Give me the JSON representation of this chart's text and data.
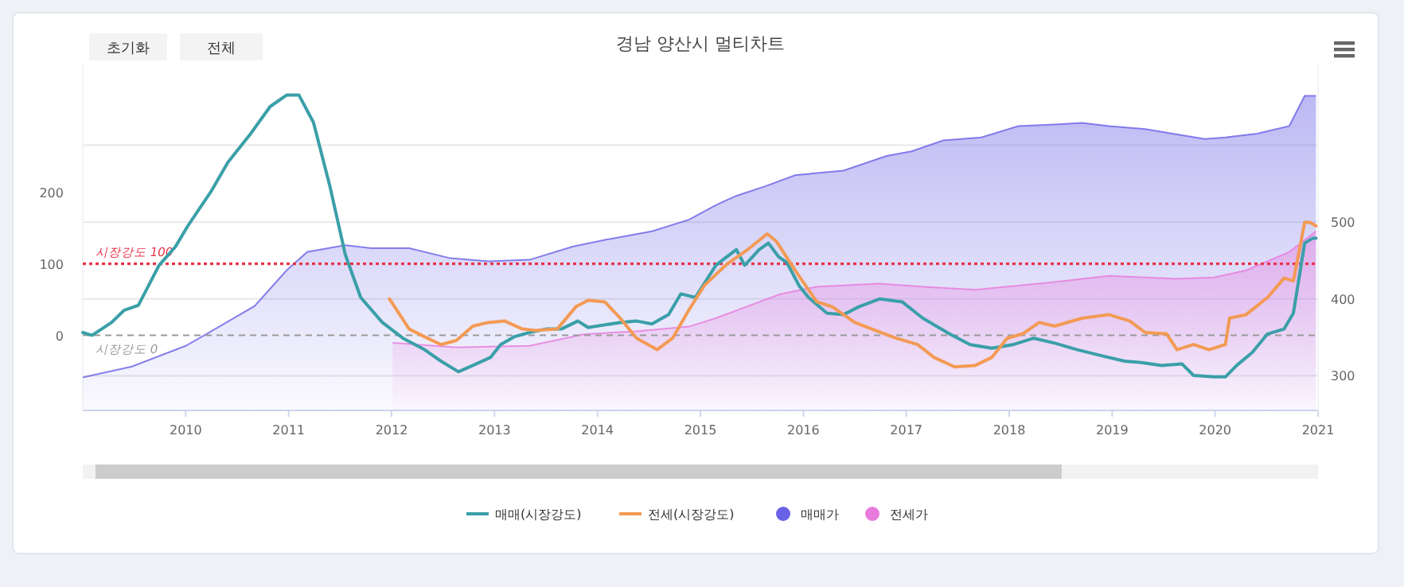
{
  "chart_data": {
    "type": "line",
    "title": "경남 양산시 멀티차트",
    "annotations": [
      "초기화",
      "전체"
    ],
    "xlim": [
      2009,
      2021
    ],
    "xticks": [
      2010,
      2011,
      2012,
      2013,
      2014,
      2015,
      2016,
      2017,
      2018,
      2019,
      2020,
      2021
    ],
    "ylim": [
      -105,
      380
    ],
    "yticks": [
      0,
      100,
      200
    ],
    "y2lim": [
      255,
      706
    ],
    "y2ticks": [
      300,
      400,
      500,
      {
        "value": 600,
        "label": null
      }
    ],
    "grid": "y",
    "legend": "bottom",
    "marker": "none",
    "line_style": "solid",
    "ref_lines": [
      {
        "axis": "y",
        "value": 100,
        "label": "시장강도 100",
        "color": "#e8334a",
        "line_style": "dotted"
      },
      {
        "axis": "y",
        "value": 0,
        "label": "시장강도 0",
        "color": "#9a9a9a",
        "line_style": "dashed"
      }
    ],
    "series": [
      {
        "name": "매매가",
        "type": "area",
        "axis": "y2",
        "color": "#6a62e6",
        "x": [
          2009,
          2009.48,
          2010,
          2010.25,
          2010.67,
          2010.98,
          2011.18,
          2011.55,
          2011.8,
          2012.17,
          2012.57,
          2012.94,
          2013.34,
          2013.76,
          2014.12,
          2014.53,
          2014.89,
          2015.15,
          2015.35,
          2015.62,
          2015.92,
          2016.39,
          2016.81,
          2017.05,
          2017.36,
          2017.73,
          2018.09,
          2018.44,
          2018.71,
          2018.97,
          2019.32,
          2019.68,
          2019.9,
          2020.1,
          2020.41,
          2020.72,
          2020.87,
          2020.98
        ],
        "values": [
          298,
          312,
          339,
          358,
          391,
          437,
          461,
          470,
          466,
          466,
          453,
          449,
          451,
          468,
          478,
          488,
          503,
          522,
          534,
          546,
          561,
          567,
          586,
          592,
          606,
          610,
          625,
          627,
          629,
          625,
          621,
          613,
          608,
          610,
          615,
          625,
          664,
          664
        ]
      },
      {
        "name": "전세가",
        "type": "area",
        "axis": "y2",
        "color": "#e77bdc",
        "x": [
          2012.01,
          2012.63,
          2013.34,
          2013.87,
          2014.38,
          2014.89,
          2015.15,
          2015.35,
          2015.77,
          2016.13,
          2016.74,
          2017.16,
          2017.67,
          2018.44,
          2018.97,
          2019.63,
          2019.99,
          2020.3,
          2020.72,
          2020.98
        ],
        "values": [
          343,
          337,
          339,
          354,
          358,
          364,
          375,
          385,
          406,
          416,
          420,
          416,
          412,
          422,
          430,
          426,
          428,
          437,
          461,
          488
        ]
      },
      {
        "name": "매매(시장강도)",
        "type": "line",
        "color": "#3a9fa8",
        "x": [
          2009,
          2009.09,
          2009.28,
          2009.4,
          2009.54,
          2009.74,
          2009.9,
          2010.02,
          2010.25,
          2010.41,
          2010.62,
          2010.82,
          2010.98,
          2011.1,
          2011.24,
          2011.4,
          2011.55,
          2011.7,
          2011.91,
          2012.11,
          2012.32,
          2012.48,
          2012.65,
          2012.79,
          2012.96,
          2013.06,
          2013.19,
          2013.34,
          2013.5,
          2013.65,
          2013.81,
          2013.91,
          2014.22,
          2014.38,
          2014.53,
          2014.69,
          2014.81,
          2014.95,
          2015.15,
          2015.23,
          2015.35,
          2015.43,
          2015.57,
          2015.66,
          2015.76,
          2015.84,
          2015.96,
          2016.05,
          2016.23,
          2016.39,
          2016.54,
          2016.74,
          2016.96,
          2017.16,
          2017.42,
          2017.62,
          2017.83,
          2018.04,
          2018.24,
          2018.44,
          2018.66,
          2018.91,
          2019.12,
          2019.28,
          2019.48,
          2019.68,
          2019.79,
          2019.99,
          2020.1,
          2020.21,
          2020.36,
          2020.51,
          2020.67,
          2020.76,
          2020.87,
          2020.95,
          2020.98
        ],
        "values": [
          4,
          0,
          18,
          35,
          42,
          98,
          124,
          153,
          202,
          242,
          280,
          320,
          336,
          336,
          298,
          209,
          113,
          53,
          18,
          -4,
          -20,
          -36,
          -51,
          -42,
          -31,
          -13,
          -2,
          4,
          9,
          9,
          20,
          11,
          18,
          20,
          16,
          29,
          58,
          53,
          98,
          107,
          120,
          98,
          120,
          129,
          110,
          102,
          69,
          53,
          31,
          29,
          40,
          51,
          47,
          24,
          2,
          -13,
          -18,
          -13,
          -4,
          -11,
          -20,
          -29,
          -36,
          -38,
          -42,
          -40,
          -56,
          -58,
          -58,
          -42,
          -24,
          2,
          9,
          31,
          129,
          136,
          136
        ]
      },
      {
        "name": "전세(시장강도)",
        "type": "line",
        "color": "#f39a54",
        "x": [
          2011.98,
          2012.17,
          2012.32,
          2012.48,
          2012.63,
          2012.79,
          2012.94,
          2013.1,
          2013.27,
          2013.4,
          2013.61,
          2013.79,
          2013.91,
          2014.07,
          2014.22,
          2014.38,
          2014.58,
          2014.73,
          2014.89,
          2015.04,
          2015.26,
          2015.46,
          2015.65,
          2015.74,
          2015.92,
          2016.13,
          2016.28,
          2016.5,
          2016.7,
          2016.9,
          2017.11,
          2017.27,
          2017.47,
          2017.67,
          2017.83,
          2017.98,
          2018.13,
          2018.29,
          2018.44,
          2018.71,
          2018.97,
          2019.17,
          2019.32,
          2019.53,
          2019.63,
          2019.79,
          2019.94,
          2020.1,
          2020.14,
          2020.3,
          2020.51,
          2020.67,
          2020.76,
          2020.87,
          2020.92,
          2020.98
        ],
        "values": [
          51,
          9,
          -2,
          -13,
          -7,
          13,
          18,
          20,
          9,
          7,
          9,
          40,
          49,
          47,
          24,
          -4,
          -20,
          -4,
          36,
          70,
          100,
          120,
          142,
          131,
          91,
          47,
          40,
          18,
          7,
          -4,
          -13,
          -31,
          -44,
          -42,
          -31,
          -4,
          2,
          18,
          13,
          24,
          29,
          20,
          4,
          2,
          -20,
          -13,
          -20,
          -13,
          24,
          29,
          53,
          80,
          76,
          158,
          158,
          153
        ]
      }
    ]
  }
}
